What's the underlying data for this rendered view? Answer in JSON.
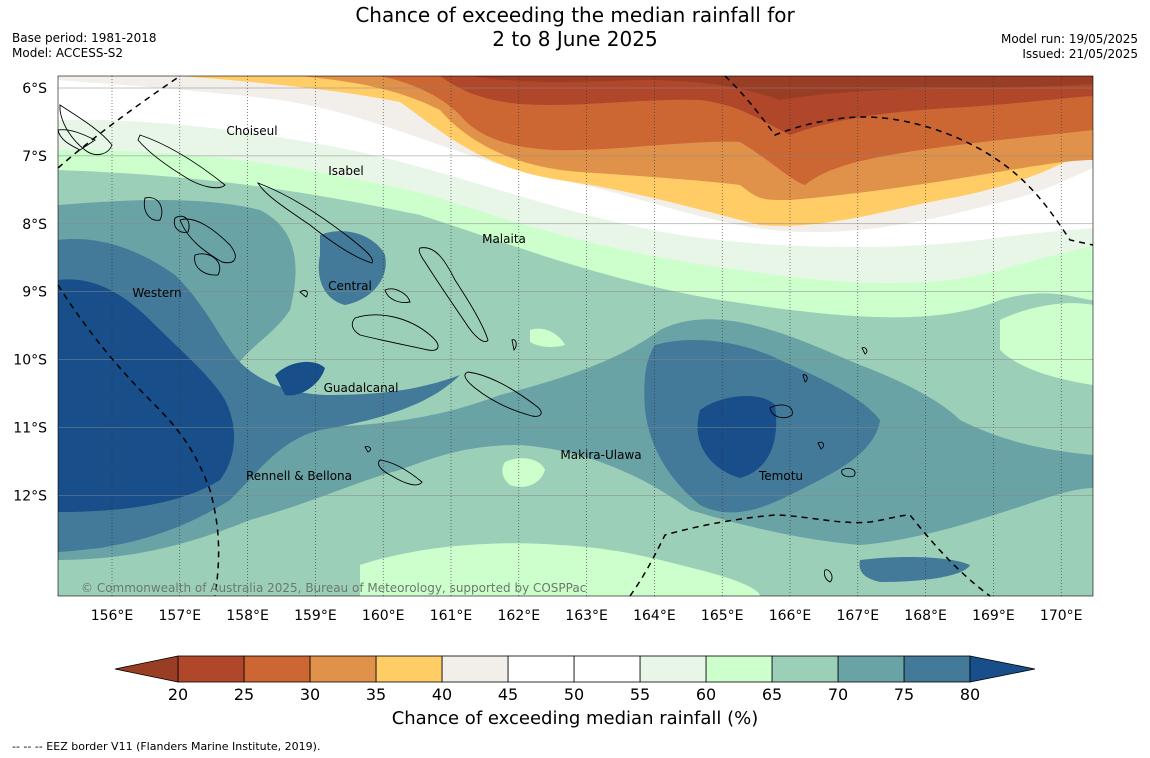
{
  "title_line1": "Chance of exceeding the median rainfall for",
  "title_line2": "2 to 8 June 2025",
  "meta_left": {
    "base_period": "Base period: 1981-2018",
    "model": "Model: ACCESS-S2"
  },
  "meta_right": {
    "model_run": "Model run: 19/05/2025",
    "issued": "Issued: 21/05/2025"
  },
  "map": {
    "lon_ticks": [
      "156°E",
      "157°E",
      "158°E",
      "159°E",
      "160°E",
      "161°E",
      "162°E",
      "163°E",
      "164°E",
      "165°E",
      "166°E",
      "167°E",
      "168°E",
      "169°E",
      "170°E"
    ],
    "lat_ticks": [
      "6°S",
      "7°S",
      "8°S",
      "9°S",
      "10°S",
      "11°S",
      "12°S"
    ],
    "provinces": [
      "Choiseul",
      "Isabel",
      "Malaita",
      "Western",
      "Central",
      "Guadalcanal",
      "Makira-Ulawa",
      "Rennell & Bellona",
      "Temotu"
    ],
    "copyright": "© Commonwealth of Australia 2025, Bureau of Meteorology, supported by COSPPac"
  },
  "colorbar": {
    "ticks": [
      "20",
      "25",
      "30",
      "35",
      "40",
      "45",
      "50",
      "55",
      "60",
      "65",
      "70",
      "75",
      "80"
    ],
    "colors": [
      "#b0472a",
      "#cc6633",
      "#e0924a",
      "#ffcc66",
      "#f2eee9",
      "#ffffff",
      "#ffffff",
      "#e8f6e8",
      "#ccffcc",
      "#9ccfb8",
      "#6aa3a6",
      "#437a99",
      "#1a4d88"
    ],
    "under_color": "#993d24",
    "over_color": "#184f8a",
    "label": "Chance of exceeding median rainfall (%)"
  },
  "footnote": "-- -- -- EEZ border V11 (Flanders Marine Institute, 2019)."
}
